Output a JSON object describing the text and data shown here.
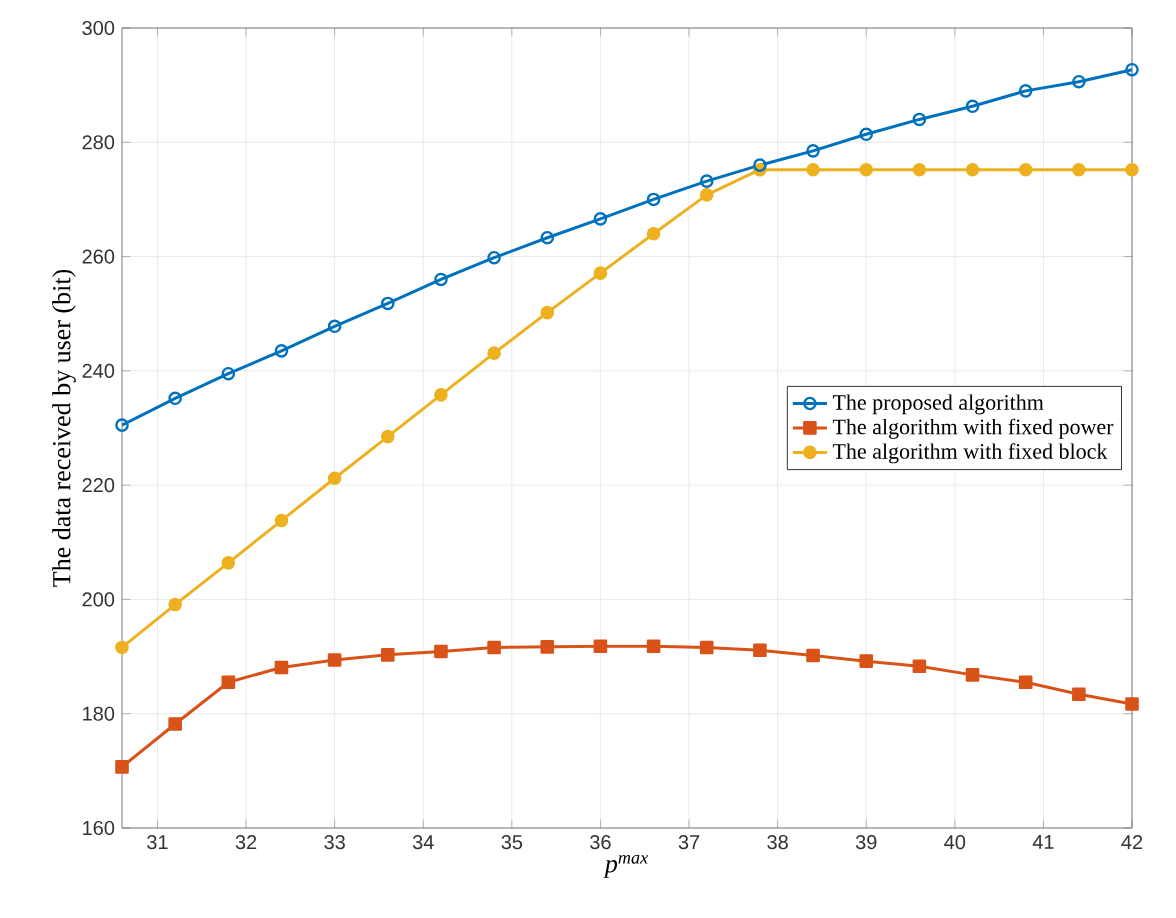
{
  "chart_data": {
    "type": "line",
    "xlabel": "p$^{max}$",
    "ylabel": "The data received by user (bit)",
    "x": [
      30.6,
      31.2,
      31.8,
      32.4,
      33,
      33.6,
      34.2,
      34.8,
      35.4,
      36,
      36.6,
      37.2,
      37.8,
      38.4,
      39,
      39.6,
      40.2,
      40.8,
      41.4,
      42
    ],
    "series": [
      {
        "name": "The proposed algorithm",
        "color": "#0072bd",
        "marker": "circle",
        "values": [
          230.5,
          235.2,
          239.5,
          243.5,
          247.8,
          251.8,
          256,
          259.8,
          263.3,
          266.6,
          270,
          273.2,
          276,
          278.5,
          281.4,
          284,
          286.3,
          289,
          290.6,
          292.7
        ]
      },
      {
        "name": "The algorithm with fixed power",
        "color": "#d95319",
        "marker": "square",
        "values": [
          170.7,
          178.2,
          185.5,
          188.1,
          189.4,
          190.3,
          190.9,
          191.6,
          191.7,
          191.8,
          191.8,
          191.6,
          191.1,
          190.2,
          189.2,
          188.3,
          186.8,
          185.5,
          183.4,
          181.7
        ]
      },
      {
        "name": "The algorithm with fixed block",
        "color": "#edb120",
        "marker": "circle*",
        "values": [
          191.6,
          199.1,
          206.4,
          213.8,
          221.2,
          228.5,
          235.8,
          243.1,
          250.2,
          257.1,
          264,
          270.8,
          275.2,
          275.2,
          275.2,
          275.2,
          275.2,
          275.2,
          275.2,
          275.2
        ]
      }
    ],
    "xlim": [
      30.6,
      42
    ],
    "ylim": [
      160,
      300
    ],
    "xticks": [
      31,
      32,
      33,
      34,
      35,
      36,
      37,
      38,
      39,
      40,
      41,
      42
    ],
    "yticks": [
      160,
      180,
      200,
      220,
      240,
      260,
      280,
      300
    ],
    "grid": true,
    "legend": "right",
    "line_style": "solid"
  }
}
